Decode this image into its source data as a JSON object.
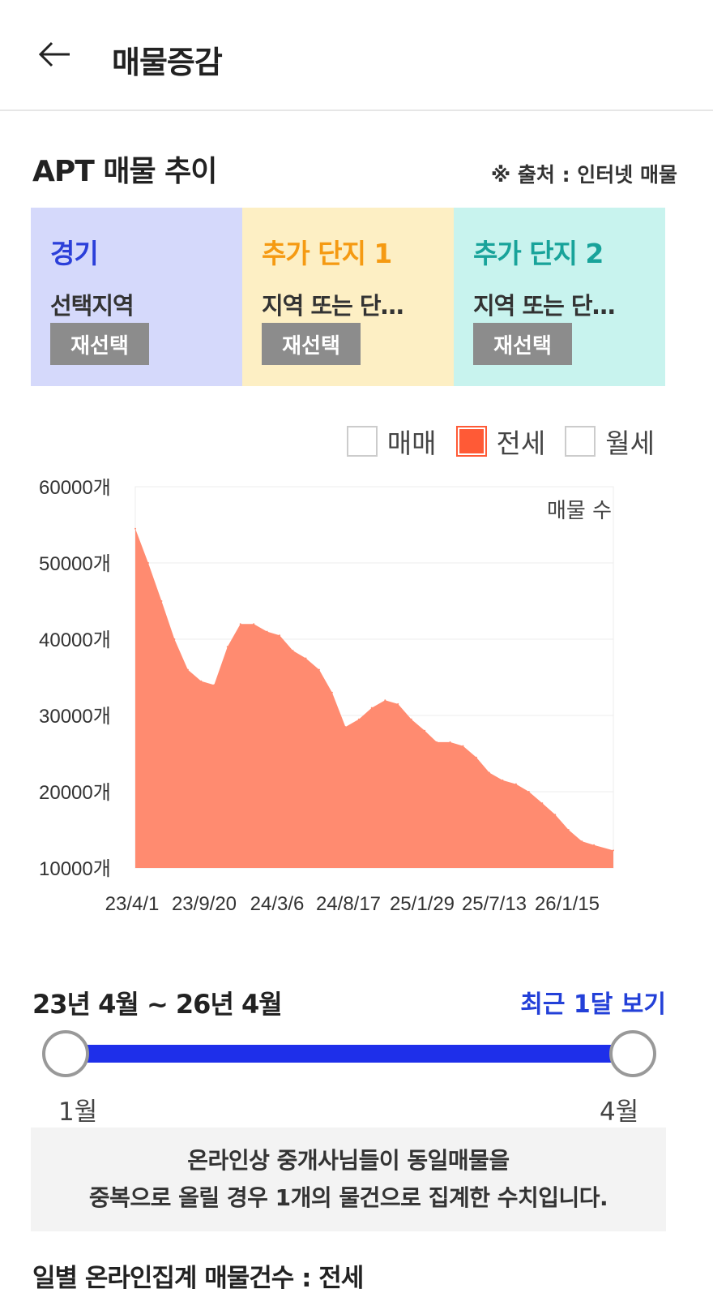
{
  "header": {
    "title": "매물증감",
    "back_icon": "arrow-left-icon"
  },
  "section": {
    "title": "APT 매물 추이",
    "source": "※ 출처 : 인터넷 매물"
  },
  "cards": [
    {
      "title": "경기",
      "subtitle": "선택지역",
      "button": "재선택",
      "bg": "#d5d9fb",
      "title_color": "#2b3fd9"
    },
    {
      "title": "추가 단지 1",
      "subtitle": "지역 또는 단…",
      "button": "재선택",
      "bg": "#fdefc4",
      "title_color": "#f59a12"
    },
    {
      "title": "추가 단지 2",
      "subtitle": "지역 또는 단…",
      "button": "재선택",
      "bg": "#c8f3ee",
      "title_color": "#18a39a"
    }
  ],
  "legend": [
    {
      "label": "매매",
      "checked": false
    },
    {
      "label": "전세",
      "checked": true
    },
    {
      "label": "월세",
      "checked": false
    }
  ],
  "chart_data": {
    "type": "area",
    "annotation": "매물 수",
    "y_ticks": [
      "60000개",
      "50000개",
      "40000개",
      "30000개",
      "20000개",
      "10000개"
    ],
    "ylim": [
      10000,
      60000
    ],
    "x_ticks": [
      "23/4/1",
      "23/9/20",
      "24/3/6",
      "24/8/17",
      "25/1/29",
      "25/7/13",
      "26/1/15"
    ],
    "x_range": [
      "2023-04-01",
      "2026-04-15"
    ],
    "x": [
      "2023-04-01",
      "2023-05-01",
      "2023-06-01",
      "2023-07-01",
      "2023-08-01",
      "2023-09-01",
      "2023-10-01",
      "2023-11-01",
      "2023-12-01",
      "2024-01-01",
      "2024-02-01",
      "2024-03-01",
      "2024-04-01",
      "2024-05-01",
      "2024-06-01",
      "2024-07-01",
      "2024-08-01",
      "2024-09-01",
      "2024-10-01",
      "2024-11-01",
      "2024-12-01",
      "2025-01-01",
      "2025-02-01",
      "2025-03-01",
      "2025-04-01",
      "2025-05-01",
      "2025-06-01",
      "2025-07-01",
      "2025-08-01",
      "2025-09-01",
      "2025-10-01",
      "2025-11-01",
      "2025-12-01",
      "2026-01-01",
      "2026-02-01",
      "2026-03-01",
      "2026-04-15"
    ],
    "values": [
      54500,
      50000,
      45000,
      40000,
      36000,
      34500,
      34000,
      39000,
      42000,
      42000,
      41000,
      40500,
      38500,
      37500,
      36000,
      33000,
      28500,
      29500,
      31000,
      32000,
      31500,
      29500,
      28000,
      26500,
      26500,
      26000,
      24500,
      22500,
      21500,
      21000,
      20000,
      18500,
      17000,
      15000,
      13500,
      13000,
      12300
    ],
    "series": [
      {
        "name": "전세",
        "color": "#ff8b70"
      }
    ],
    "grid": true
  },
  "range": {
    "label": "23년 4월 ~ 26년 4월",
    "recent_link": "최근 1달 보기",
    "start_label": "1월",
    "end_label": "4월"
  },
  "notice": {
    "line1": "온라인상 중개사님들이 동일매물을",
    "line2": "중복으로 올릴 경우 1개의 물건으로 집계한 수치입니다."
  },
  "footer": {
    "title": "일별 온라인집계 매물건수 : 전세"
  }
}
